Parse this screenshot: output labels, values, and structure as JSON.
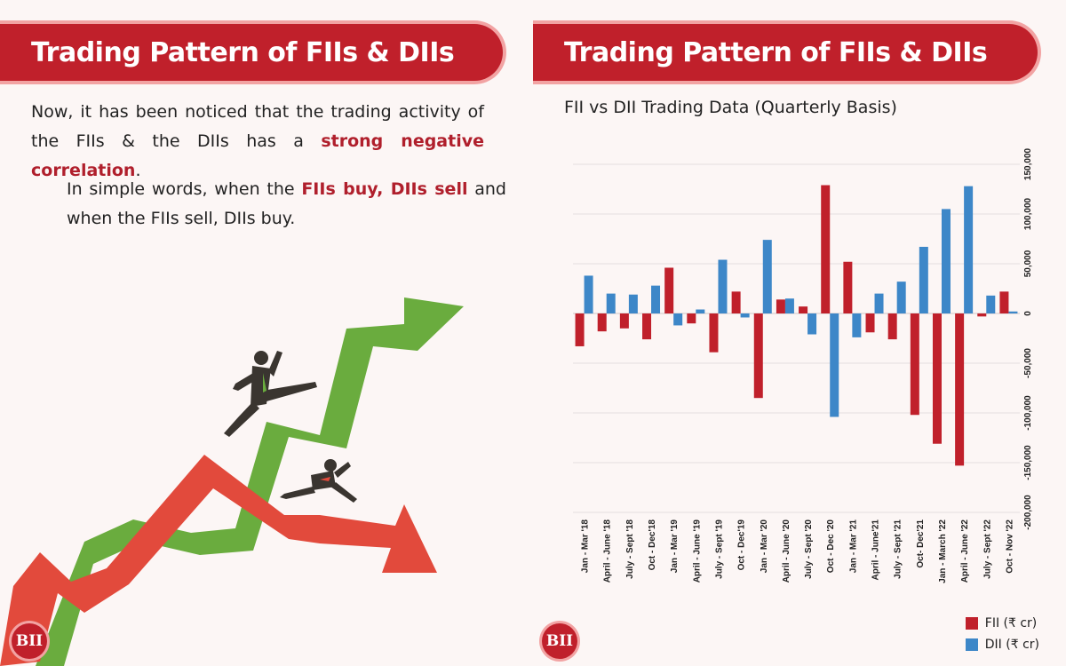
{
  "left": {
    "title": "Trading Pattern of FIIs & DIIs",
    "para1_before": "Now, it has been noticed that the trading activity of the FIIs & the DIIs has a ",
    "para1_highlight": "strong negative correlation",
    "para1_after": ".",
    "para2_before": "In simple words, when the ",
    "para2_highlight": "FIIs buy, DIIs sell",
    "para2_after": " and when the FIIs sell, DIIs buy.",
    "logo": "BII"
  },
  "right": {
    "title": "Trading Pattern of FIIs & DIIs",
    "logo": "BII"
  },
  "colors": {
    "brand": "#c0202b",
    "fii": "#c0202b",
    "dii": "#3d87c8",
    "green": "#6aac3e",
    "red_arrow": "#e24a3c"
  },
  "chart_data": {
    "type": "bar",
    "title": "FII vs DII Trading Data (Quarterly Basis)",
    "categories": [
      "Jan - Mar '18",
      "April - June '18",
      "July - Sept '18",
      "Oct - Dec'18",
      "Jan - Mar '19",
      "April - June '19",
      "July - Sept '19",
      "Oct - Dec'19",
      "Jan - Mar '20",
      "April - June '20",
      "July - Sept '20",
      "Oct - Dec '20",
      "Jan - Mar '21",
      "April - June'21",
      "July - Sept '21",
      "Oct- Dec'21",
      "Jan - March '22",
      "April - June '22",
      "July - Sept '22",
      "Oct - Nov '22"
    ],
    "series": [
      {
        "name": "FII (₹ cr)",
        "values": [
          -33000,
          -18000,
          -15000,
          -26000,
          46000,
          -10000,
          -39000,
          22000,
          -85000,
          14000,
          7000,
          129000,
          52000,
          -19000,
          -26000,
          -102000,
          -131000,
          -153000,
          -3000,
          22000
        ]
      },
      {
        "name": "DII (₹ cr)",
        "values": [
          38000,
          20000,
          19000,
          28000,
          -12000,
          4000,
          54000,
          -4000,
          74000,
          15000,
          -21000,
          -104000,
          -24000,
          20000,
          32000,
          67000,
          105000,
          128000,
          18000,
          2000
        ]
      }
    ],
    "ylim": [
      -200000,
      150000
    ],
    "yticks": [
      150000,
      100000,
      50000,
      0,
      -50000,
      -100000,
      -150000,
      -200000
    ],
    "ytick_labels": [
      "150,000",
      "100,000",
      "50,000",
      "0",
      "-50,000",
      "-100,000",
      "-150,000",
      "-200,000"
    ],
    "y_axis_side": "right",
    "grid": true,
    "legend_position": "bottom-right"
  }
}
